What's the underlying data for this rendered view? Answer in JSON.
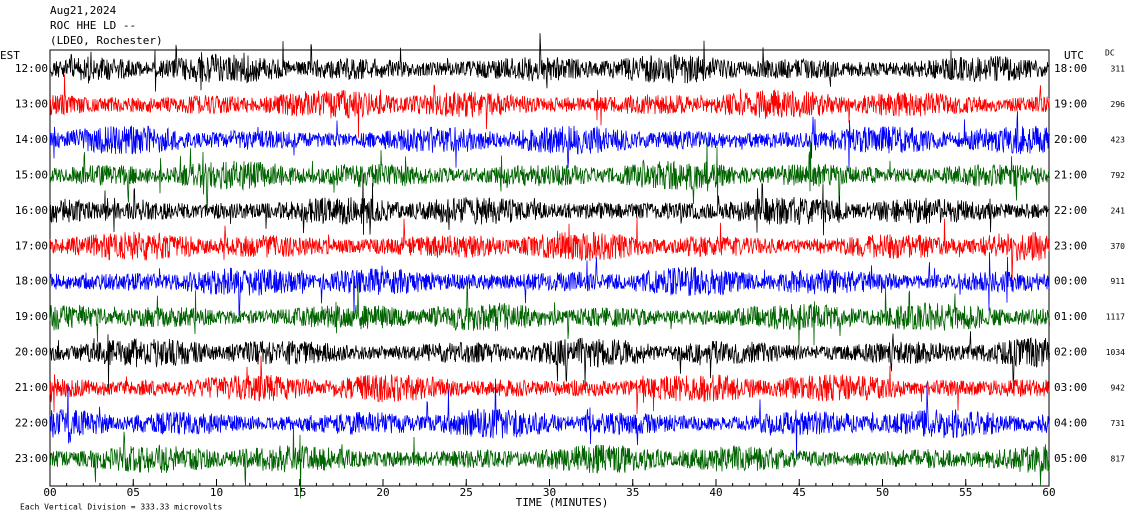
{
  "chart_data": {
    "type": "helicorder",
    "header": [
      "Aug21,2024",
      "ROC HHE LD --",
      "(LDEO, Rochester)"
    ],
    "left_axis_label": "EST",
    "right_axis_label": "UTC",
    "dc_label": "DC",
    "x_label": "TIME (MINUTES)",
    "footer": "Each Vertical Division =  333.33 microvolts",
    "xlim": [
      0,
      60
    ],
    "xticks": [
      {
        "value": 0,
        "label": "00"
      },
      {
        "value": 5,
        "label": "05"
      },
      10,
      15,
      20,
      25,
      30,
      35,
      40,
      45,
      50,
      55,
      60
    ],
    "colors": [
      "#000000",
      "#ff0000",
      "#0000ff",
      "#006400"
    ],
    "rows": [
      {
        "est": "12:00",
        "utc": "18:00",
        "dc": 311
      },
      {
        "est": "13:00",
        "utc": "19:00",
        "dc": 296
      },
      {
        "est": "14:00",
        "utc": "20:00",
        "dc": 423
      },
      {
        "est": "15:00",
        "utc": "21:00",
        "dc": 792
      },
      {
        "est": "16:00",
        "utc": "22:00",
        "dc": 241
      },
      {
        "est": "17:00",
        "utc": "23:00",
        "dc": 370
      },
      {
        "est": "18:00",
        "utc": "00:00",
        "dc": 911
      },
      {
        "est": "19:00",
        "utc": "01:00",
        "dc": 1117
      },
      {
        "est": "20:00",
        "utc": "02:00",
        "dc": 1034
      },
      {
        "est": "21:00",
        "utc": "03:00",
        "dc": 942
      },
      {
        "est": "22:00",
        "utc": "04:00",
        "dc": 731
      },
      {
        "est": "23:00",
        "utc": "05:00",
        "dc": 817
      }
    ]
  }
}
